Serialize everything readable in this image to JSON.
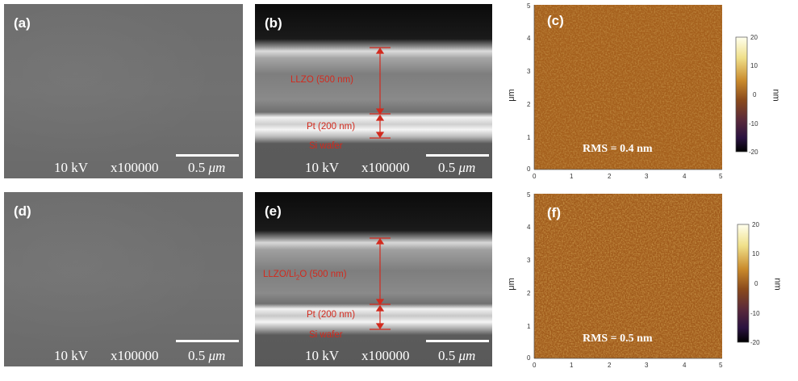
{
  "panels": {
    "a": {
      "letter": "(a)",
      "voltage": "10 kV",
      "magnification": "x100000",
      "scale": "0.5",
      "scale_unit": "μm"
    },
    "b": {
      "letter": "(b)",
      "voltage": "10 kV",
      "magnification": "x100000",
      "scale": "0.5",
      "scale_unit": "μm",
      "layer_top": "LLZO (500 nm)",
      "layer_mid": "Pt (200 nm)",
      "substrate": "Si wafer"
    },
    "c": {
      "letter": "(c)",
      "rms": "RMS = 0.4 nm",
      "y_unit": "μm",
      "x_ticks": [
        "0",
        "1",
        "2",
        "3",
        "4",
        "5"
      ],
      "y_ticks": [
        "0",
        "1",
        "2",
        "3",
        "4",
        "5"
      ],
      "colorbar_ticks": [
        "20",
        "10",
        "0",
        "-10",
        "-20"
      ],
      "colorbar_unit": "nm"
    },
    "d": {
      "letter": "(d)",
      "voltage": "10 kV",
      "magnification": "x100000",
      "scale": "0.5",
      "scale_unit": "μm"
    },
    "e": {
      "letter": "(e)",
      "voltage": "10 kV",
      "magnification": "x100000",
      "scale": "0.5",
      "scale_unit": "μm",
      "layer_top": "LLZO/Li",
      "layer_top_sub": "2",
      "layer_top_rest": "O (500 nm)",
      "layer_mid": "Pt (200 nm)",
      "substrate": "Si wafer"
    },
    "f": {
      "letter": "(f)",
      "rms": "RMS = 0.5 nm",
      "y_unit": "μm",
      "x_ticks": [
        "0",
        "1",
        "2",
        "3",
        "4",
        "5"
      ],
      "y_ticks": [
        "0",
        "1",
        "2",
        "3",
        "4",
        "5"
      ],
      "colorbar_ticks": [
        "20",
        "10",
        "0",
        "-10",
        "-20"
      ],
      "colorbar_unit": "nm"
    }
  },
  "colors": {
    "annotation_red": "#d22a1e",
    "afm_base": "#a5601d",
    "colorbar": [
      "#ffffee",
      "#f0e08a",
      "#c98a2c",
      "#8a4a1c",
      "#5a2a3a",
      "#2a1240",
      "#000000"
    ]
  }
}
